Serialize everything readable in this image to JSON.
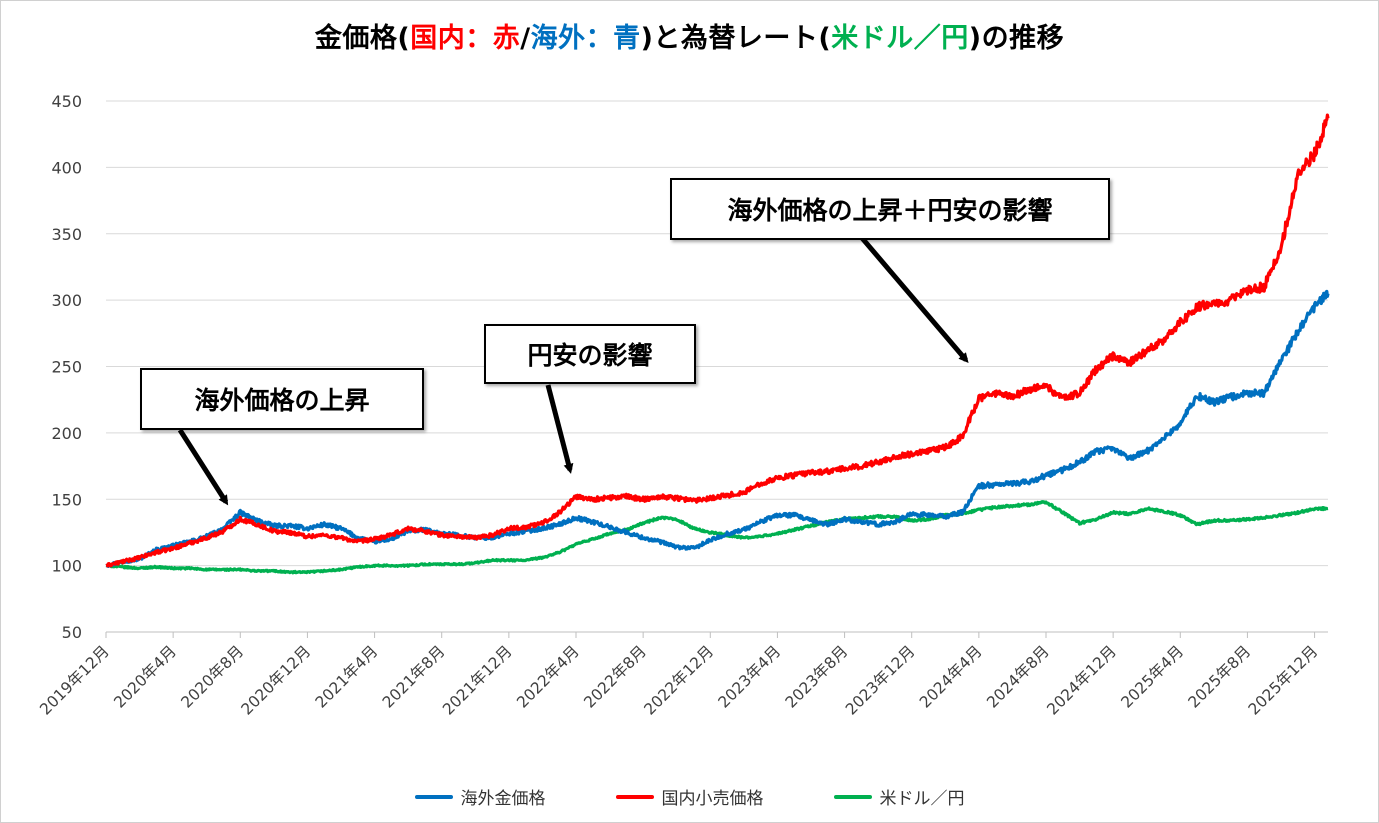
{
  "title_parts": [
    {
      "text": "金価格(",
      "color": "#000000"
    },
    {
      "text": "国内：赤",
      "color": "#ff0000"
    },
    {
      "text": "/",
      "color": "#000000"
    },
    {
      "text": "海外：青",
      "color": "#0070c0"
    },
    {
      "text": ")と為替レート(",
      "color": "#000000"
    },
    {
      "text": "米ドル／円",
      "color": "#00b050"
    },
    {
      "text": ")の推移",
      "color": "#000000"
    }
  ],
  "callouts": {
    "overseas_rise": "海外価格の上昇",
    "yen_weak": "円安の影響",
    "both": "海外価格の上昇＋円安の影響"
  },
  "chart_data": {
    "type": "line",
    "x_tick_labels": [
      "2019年12月",
      "2020年4月",
      "2020年8月",
      "2020年12月",
      "2021年4月",
      "2021年8月",
      "2021年12月",
      "2022年4月",
      "2022年8月",
      "2022年12月",
      "2023年4月",
      "2023年8月",
      "2023年12月",
      "2024年4月",
      "2024年8月",
      "2024年12月",
      "2025年4月",
      "2025年8月",
      "2025年12月"
    ],
    "x_tick_months": [
      0,
      4,
      8,
      12,
      16,
      20,
      24,
      28,
      32,
      36,
      40,
      44,
      48,
      52,
      56,
      60,
      64,
      68,
      72
    ],
    "x_range_months": [
      0,
      72.8
    ],
    "ylim": [
      50,
      450
    ],
    "yticks": [
      50,
      100,
      150,
      200,
      250,
      300,
      350,
      400,
      450
    ],
    "grid": "horizontal",
    "legend_position": "bottom",
    "series": [
      {
        "name": "海外金価格",
        "color": "#0070c0",
        "points": [
          [
            0,
            100
          ],
          [
            1,
            103
          ],
          [
            2,
            105
          ],
          [
            3,
            112
          ],
          [
            4,
            115
          ],
          [
            5,
            118
          ],
          [
            6,
            122
          ],
          [
            7,
            128
          ],
          [
            8,
            140
          ],
          [
            9,
            134
          ],
          [
            10,
            130
          ],
          [
            11,
            130
          ],
          [
            12,
            128
          ],
          [
            13,
            131
          ],
          [
            14,
            128
          ],
          [
            15,
            121
          ],
          [
            16,
            118
          ],
          [
            17,
            120
          ],
          [
            18,
            126
          ],
          [
            19,
            127
          ],
          [
            20,
            124
          ],
          [
            21,
            123
          ],
          [
            22,
            121
          ],
          [
            23,
            121
          ],
          [
            24,
            124
          ],
          [
            25,
            126
          ],
          [
            26,
            128
          ],
          [
            27,
            131
          ],
          [
            28,
            136
          ],
          [
            29,
            133
          ],
          [
            30,
            129
          ],
          [
            31,
            125
          ],
          [
            32,
            121
          ],
          [
            33,
            118
          ],
          [
            34,
            114
          ],
          [
            35,
            113
          ],
          [
            36,
            119
          ],
          [
            37,
            124
          ],
          [
            38,
            127
          ],
          [
            39,
            133
          ],
          [
            40,
            138
          ],
          [
            41,
            138
          ],
          [
            42,
            134
          ],
          [
            43,
            131
          ],
          [
            44,
            135
          ],
          [
            45,
            133
          ],
          [
            46,
            131
          ],
          [
            47,
            133
          ],
          [
            48,
            139
          ],
          [
            49,
            138
          ],
          [
            50,
            137
          ],
          [
            51,
            140
          ],
          [
            52,
            160
          ],
          [
            53,
            161
          ],
          [
            54,
            162
          ],
          [
            55,
            163
          ],
          [
            56,
            168
          ],
          [
            57,
            172
          ],
          [
            58,
            178
          ],
          [
            59,
            186
          ],
          [
            60,
            188
          ],
          [
            61,
            181
          ],
          [
            62,
            186
          ],
          [
            63,
            196
          ],
          [
            64,
            207
          ],
          [
            65,
            228
          ],
          [
            66,
            223
          ],
          [
            67,
            227
          ],
          [
            68,
            230
          ],
          [
            69,
            230
          ],
          [
            70,
            254
          ],
          [
            71,
            276
          ],
          [
            72,
            295
          ],
          [
            72.8,
            305
          ]
        ]
      },
      {
        "name": "国内小売価格",
        "color": "#ff0000",
        "points": [
          [
            0,
            100
          ],
          [
            1,
            103
          ],
          [
            2,
            106
          ],
          [
            3,
            110
          ],
          [
            4,
            113
          ],
          [
            5,
            117
          ],
          [
            6,
            121
          ],
          [
            7,
            126
          ],
          [
            8,
            135
          ],
          [
            9,
            131
          ],
          [
            10,
            126
          ],
          [
            11,
            125
          ],
          [
            12,
            122
          ],
          [
            13,
            123
          ],
          [
            14,
            121
          ],
          [
            15,
            118
          ],
          [
            16,
            120
          ],
          [
            17,
            123
          ],
          [
            18,
            128
          ],
          [
            19,
            126
          ],
          [
            20,
            123
          ],
          [
            21,
            122
          ],
          [
            22,
            121
          ],
          [
            23,
            123
          ],
          [
            24,
            128
          ],
          [
            25,
            129
          ],
          [
            26,
            132
          ],
          [
            27,
            140
          ],
          [
            28,
            152
          ],
          [
            29,
            150
          ],
          [
            30,
            151
          ],
          [
            31,
            152
          ],
          [
            32,
            150
          ],
          [
            33,
            152
          ],
          [
            34,
            151
          ],
          [
            35,
            149
          ],
          [
            36,
            151
          ],
          [
            37,
            153
          ],
          [
            38,
            155
          ],
          [
            39,
            162
          ],
          [
            40,
            166
          ],
          [
            41,
            168
          ],
          [
            42,
            170
          ],
          [
            43,
            171
          ],
          [
            44,
            173
          ],
          [
            45,
            175
          ],
          [
            46,
            178
          ],
          [
            47,
            182
          ],
          [
            48,
            184
          ],
          [
            49,
            186
          ],
          [
            50,
            189
          ],
          [
            51,
            197
          ],
          [
            52,
            226
          ],
          [
            53,
            230
          ],
          [
            54,
            227
          ],
          [
            55,
            233
          ],
          [
            56,
            235
          ],
          [
            57,
            226
          ],
          [
            58,
            230
          ],
          [
            59,
            248
          ],
          [
            60,
            258
          ],
          [
            61,
            253
          ],
          [
            62,
            262
          ],
          [
            63,
            270
          ],
          [
            64,
            283
          ],
          [
            65,
            295
          ],
          [
            66,
            298
          ],
          [
            67,
            300
          ],
          [
            68,
            307
          ],
          [
            69,
            310
          ],
          [
            70,
            340
          ],
          [
            71,
            395
          ],
          [
            72,
            410
          ],
          [
            72.8,
            437
          ]
        ]
      },
      {
        "name": "米ドル／円",
        "color": "#00b050",
        "points": [
          [
            0,
            100
          ],
          [
            1,
            99
          ],
          [
            2,
            98
          ],
          [
            3,
            99
          ],
          [
            4,
            98
          ],
          [
            5,
            98
          ],
          [
            6,
            97
          ],
          [
            7,
            97
          ],
          [
            8,
            97
          ],
          [
            9,
            96
          ],
          [
            10,
            96
          ],
          [
            11,
            95
          ],
          [
            12,
            95
          ],
          [
            13,
            96
          ],
          [
            14,
            97
          ],
          [
            15,
            99
          ],
          [
            16,
            100
          ],
          [
            17,
            100
          ],
          [
            18,
            100
          ],
          [
            19,
            101
          ],
          [
            20,
            101
          ],
          [
            21,
            101
          ],
          [
            22,
            102
          ],
          [
            23,
            104
          ],
          [
            24,
            104
          ],
          [
            25,
            104
          ],
          [
            26,
            106
          ],
          [
            27,
            110
          ],
          [
            28,
            116
          ],
          [
            29,
            120
          ],
          [
            30,
            124
          ],
          [
            31,
            127
          ],
          [
            32,
            132
          ],
          [
            33,
            136
          ],
          [
            34,
            135
          ],
          [
            35,
            128
          ],
          [
            36,
            125
          ],
          [
            37,
            123
          ],
          [
            38,
            121
          ],
          [
            39,
            122
          ],
          [
            40,
            124
          ],
          [
            41,
            127
          ],
          [
            42,
            130
          ],
          [
            43,
            133
          ],
          [
            44,
            135
          ],
          [
            45,
            136
          ],
          [
            46,
            137
          ],
          [
            47,
            137
          ],
          [
            48,
            134
          ],
          [
            49,
            135
          ],
          [
            50,
            138
          ],
          [
            51,
            139
          ],
          [
            52,
            142
          ],
          [
            53,
            144
          ],
          [
            54,
            145
          ],
          [
            55,
            146
          ],
          [
            56,
            148
          ],
          [
            57,
            140
          ],
          [
            58,
            132
          ],
          [
            59,
            135
          ],
          [
            60,
            140
          ],
          [
            61,
            139
          ],
          [
            62,
            143
          ],
          [
            63,
            141
          ],
          [
            64,
            138
          ],
          [
            65,
            131
          ],
          [
            66,
            134
          ],
          [
            67,
            134
          ],
          [
            68,
            135
          ],
          [
            69,
            136
          ],
          [
            70,
            138
          ],
          [
            71,
            140
          ],
          [
            72,
            143
          ],
          [
            72.8,
            143
          ]
        ]
      }
    ]
  }
}
